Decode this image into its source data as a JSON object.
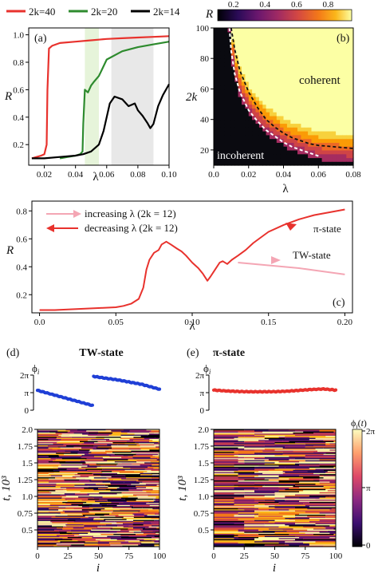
{
  "chart_data": [
    {
      "type": "line",
      "panel": "(a)",
      "xlabel": "λ",
      "ylabel": "R",
      "xlim": [
        0.01,
        0.1
      ],
      "ylim": [
        0.05,
        1.05
      ],
      "xticks": [
        "0.02",
        "0.04",
        "0.06",
        "0.08",
        "0.10"
      ],
      "yticks": [
        "0.2",
        "0.4",
        "0.6",
        "0.8",
        "1.0"
      ],
      "shaded_regions": [
        [
          0.046,
          0.055
        ],
        [
          0.063,
          0.09
        ]
      ],
      "series": [
        {
          "name": "2k=40",
          "color": "#e8322d",
          "x": [
            0.012,
            0.015,
            0.018,
            0.02,
            0.0215,
            0.022,
            0.023,
            0.025,
            0.03,
            0.04,
            0.05,
            0.06,
            0.07,
            0.08,
            0.09,
            0.1
          ],
          "y": [
            0.1,
            0.11,
            0.12,
            0.13,
            0.2,
            0.6,
            0.9,
            0.92,
            0.94,
            0.95,
            0.96,
            0.97,
            0.975,
            0.98,
            0.985,
            0.99
          ]
        },
        {
          "name": "2k=20",
          "color": "#2e8b2e",
          "x": [
            0.03,
            0.035,
            0.04,
            0.043,
            0.0445,
            0.045,
            0.046,
            0.048,
            0.05,
            0.052,
            0.055,
            0.06,
            0.07,
            0.08,
            0.09,
            0.1
          ],
          "y": [
            0.1,
            0.11,
            0.12,
            0.13,
            0.15,
            0.35,
            0.6,
            0.58,
            0.63,
            0.66,
            0.7,
            0.82,
            0.88,
            0.91,
            0.93,
            0.95
          ]
        },
        {
          "name": "2k=14",
          "color": "#000000",
          "x": [
            0.012,
            0.02,
            0.03,
            0.04,
            0.045,
            0.05,
            0.055,
            0.058,
            0.06,
            0.062,
            0.065,
            0.07,
            0.074,
            0.078,
            0.08,
            0.083,
            0.086,
            0.088,
            0.09,
            0.093,
            0.096,
            0.1
          ],
          "y": [
            0.1,
            0.1,
            0.11,
            0.12,
            0.13,
            0.15,
            0.2,
            0.3,
            0.4,
            0.5,
            0.55,
            0.53,
            0.48,
            0.5,
            0.45,
            0.41,
            0.36,
            0.32,
            0.35,
            0.48,
            0.56,
            0.64
          ]
        }
      ]
    },
    {
      "type": "heatmap",
      "panel": "(b)",
      "xlabel": "λ",
      "ylabel": "2k",
      "colorbar_label": "R",
      "colorbar_ticks": [
        "0.2",
        "0.4",
        "0.6",
        "0.8"
      ],
      "xlim": [
        0,
        0.08
      ],
      "ylim": [
        10,
        100
      ],
      "xticks": [
        "0.0",
        "0.02",
        "0.04",
        "0.06",
        "0.08"
      ],
      "yticks": [
        "20",
        "40",
        "60",
        "80",
        "100"
      ],
      "region_labels": [
        "coherent",
        "incoherent"
      ],
      "boundary_white": {
        "x": [
          0.009,
          0.01,
          0.012,
          0.015,
          0.02,
          0.025,
          0.03,
          0.035,
          0.04,
          0.045,
          0.05,
          0.055,
          0.06
        ],
        "y": [
          100,
          85,
          70,
          58,
          46,
          39,
          33,
          29,
          25,
          22,
          20,
          18,
          16
        ]
      },
      "boundary_black": {
        "x": [
          0.01,
          0.012,
          0.015,
          0.02,
          0.025,
          0.03,
          0.035,
          0.04,
          0.045,
          0.05,
          0.055,
          0.06,
          0.07,
          0.08
        ],
        "y": [
          100,
          86,
          72,
          58,
          48,
          40,
          35,
          31,
          28,
          26,
          24,
          23,
          22,
          21
        ]
      }
    },
    {
      "type": "line",
      "panel": "(c)",
      "xlabel": "λ",
      "ylabel": "R",
      "xlim": [
        -0.005,
        0.205
      ],
      "ylim": [
        0.07,
        0.87
      ],
      "xticks": [
        "0.0",
        "0.05",
        "0.10",
        "0.15",
        "0.20"
      ],
      "yticks": [
        "0.2",
        "0.4",
        "0.6",
        "0.8"
      ],
      "annotations": [
        "π-state",
        "TW-state"
      ],
      "series": [
        {
          "name": "increasing λ (2k = 12)",
          "color": "#f4a6b4",
          "x": [
            0.13,
            0.14,
            0.15,
            0.16,
            0.17,
            0.18,
            0.19,
            0.2
          ],
          "y": [
            0.43,
            0.42,
            0.41,
            0.4,
            0.39,
            0.375,
            0.36,
            0.345
          ]
        },
        {
          "name": "decreasing λ (2k = 12)",
          "color": "#e8322d",
          "x": [
            0.0,
            0.01,
            0.02,
            0.03,
            0.04,
            0.05,
            0.055,
            0.06,
            0.065,
            0.068,
            0.07,
            0.072,
            0.075,
            0.078,
            0.08,
            0.083,
            0.086,
            0.09,
            0.093,
            0.096,
            0.1,
            0.104,
            0.107,
            0.11,
            0.112,
            0.115,
            0.118,
            0.12,
            0.123,
            0.126,
            0.13,
            0.135,
            0.14,
            0.145,
            0.15,
            0.16,
            0.17,
            0.18,
            0.19,
            0.2
          ],
          "y": [
            0.09,
            0.09,
            0.095,
            0.1,
            0.105,
            0.11,
            0.12,
            0.135,
            0.17,
            0.25,
            0.38,
            0.45,
            0.5,
            0.52,
            0.56,
            0.58,
            0.56,
            0.53,
            0.51,
            0.48,
            0.43,
            0.39,
            0.35,
            0.3,
            0.33,
            0.38,
            0.43,
            0.44,
            0.42,
            0.45,
            0.48,
            0.52,
            0.57,
            0.61,
            0.65,
            0.7,
            0.74,
            0.77,
            0.79,
            0.81
          ]
        }
      ]
    },
    {
      "type": "line",
      "panel": "(d)",
      "title": "TW-state",
      "ylabel": "ϕi",
      "yticks": [
        "2π",
        "π",
        "0"
      ],
      "series": [
        {
          "name": "",
          "color": "#1f3fd6",
          "x": [
            0,
            10,
            20,
            30,
            40,
            45,
            46,
            55,
            65,
            75,
            85,
            100
          ],
          "y": [
            3.55,
            2.95,
            2.35,
            1.75,
            1.15,
            0.85,
            6.05,
            5.75,
            5.45,
            5.05,
            4.65,
            3.75
          ]
        }
      ]
    },
    {
      "type": "line",
      "panel": "(e)",
      "title": "π-state",
      "ylabel": "ϕi",
      "yticks": [
        "2π",
        "π",
        "0"
      ],
      "series": [
        {
          "name": "",
          "color": "#e8322d",
          "x": [
            0,
            10,
            20,
            30,
            40,
            50,
            60,
            70,
            80,
            90,
            100
          ],
          "y": [
            3.6,
            3.45,
            3.35,
            3.3,
            3.3,
            3.32,
            3.4,
            3.55,
            3.7,
            3.8,
            3.6
          ]
        }
      ]
    },
    {
      "type": "heatmap",
      "panel": "(d)",
      "xlabel": "i",
      "ylabel": "t, 10³",
      "xticks": [
        "0",
        "25",
        "50",
        "75",
        "100"
      ],
      "yticks": [
        "0.5",
        "0.75",
        "1.0",
        "1.25",
        "1.5",
        "1.75",
        "2.0"
      ],
      "xlim": [
        0,
        100
      ],
      "ylim": [
        0.25,
        2.0
      ]
    },
    {
      "type": "heatmap",
      "panel": "(e)",
      "xlabel": "i",
      "ylabel": "t, 10³",
      "xticks": [
        "0",
        "25",
        "50",
        "75",
        "100"
      ],
      "yticks": [
        "0.5",
        "0.75",
        "1.0",
        "1.25",
        "1.5",
        "1.75",
        "2.0"
      ],
      "xlim": [
        0,
        100
      ],
      "ylim": [
        0.25,
        2.0
      ],
      "colorbar_label": "ϕi(t)",
      "colorbar_ticks": [
        "2π",
        "π",
        "0"
      ]
    }
  ],
  "inferno": [
    "#000004",
    "#1b0c41",
    "#4a0c6b",
    "#781c6d",
    "#a52c60",
    "#cf4446",
    "#ed6925",
    "#fb9b06",
    "#f7d13d",
    "#fcffa4"
  ]
}
